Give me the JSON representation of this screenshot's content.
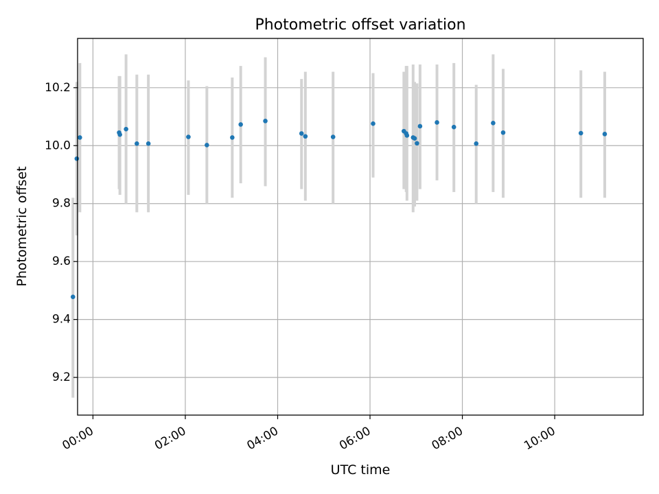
{
  "chart_data": {
    "type": "scatter",
    "title": "Photometric offset variation",
    "xlabel": "UTC time",
    "ylabel": "Photometric offset",
    "x_unit": "hours UTC",
    "xlim": [
      "-00:20",
      "11:55"
    ],
    "ylim": [
      9.07,
      10.37
    ],
    "x_ticks": [
      "00:00",
      "02:00",
      "04:00",
      "06:00",
      "08:00",
      "10:00"
    ],
    "y_ticks": [
      "9.2",
      "9.4",
      "9.6",
      "9.8",
      "10.0",
      "10.2"
    ],
    "grid": true,
    "colors": {
      "point": "#1f77b4",
      "errorbar": "#d3d3d3"
    },
    "series": [
      {
        "points": [
          {
            "t": "23:34",
            "y": 9.478,
            "lo": 9.13,
            "hi": 9.82
          },
          {
            "t": "23:39",
            "y": 9.955,
            "lo": 9.69,
            "hi": 10.22
          },
          {
            "t": "23:43",
            "y": 10.028,
            "lo": 9.77,
            "hi": 10.285
          },
          {
            "t": "00:34",
            "y": 10.045,
            "lo": 9.85,
            "hi": 10.24
          },
          {
            "t": "00:35",
            "y": 10.038,
            "lo": 9.83,
            "hi": 10.24
          },
          {
            "t": "00:43",
            "y": 10.057,
            "lo": 9.8,
            "hi": 10.315
          },
          {
            "t": "00:57",
            "y": 10.007,
            "lo": 9.77,
            "hi": 10.245
          },
          {
            "t": "01:12",
            "y": 10.007,
            "lo": 9.77,
            "hi": 10.245
          },
          {
            "t": "02:04",
            "y": 10.03,
            "lo": 9.83,
            "hi": 10.225
          },
          {
            "t": "02:28",
            "y": 10.002,
            "lo": 9.8,
            "hi": 10.205
          },
          {
            "t": "03:01",
            "y": 10.028,
            "lo": 9.82,
            "hi": 10.235
          },
          {
            "t": "03:12",
            "y": 10.073,
            "lo": 9.87,
            "hi": 10.275
          },
          {
            "t": "03:44",
            "y": 10.085,
            "lo": 9.86,
            "hi": 10.305
          },
          {
            "t": "04:31",
            "y": 10.042,
            "lo": 9.85,
            "hi": 10.23
          },
          {
            "t": "04:36",
            "y": 10.032,
            "lo": 9.81,
            "hi": 10.255
          },
          {
            "t": "05:12",
            "y": 10.03,
            "lo": 9.8,
            "hi": 10.255
          },
          {
            "t": "06:04",
            "y": 10.076,
            "lo": 9.89,
            "hi": 10.25
          },
          {
            "t": "06:44",
            "y": 10.05,
            "lo": 9.85,
            "hi": 10.255
          },
          {
            "t": "06:47",
            "y": 10.042,
            "lo": 9.84,
            "hi": 10.275
          },
          {
            "t": "06:48",
            "y": 10.035,
            "lo": 9.81,
            "hi": 10.275
          },
          {
            "t": "06:56",
            "y": 10.028,
            "lo": 9.77,
            "hi": 10.28
          },
          {
            "t": "06:58",
            "y": 10.025,
            "lo": 9.79,
            "hi": 10.22
          },
          {
            "t": "07:01",
            "y": 10.008,
            "lo": 9.81,
            "hi": 10.215
          },
          {
            "t": "07:05",
            "y": 10.067,
            "lo": 9.85,
            "hi": 10.28
          },
          {
            "t": "07:27",
            "y": 10.08,
            "lo": 9.88,
            "hi": 10.28
          },
          {
            "t": "07:49",
            "y": 10.064,
            "lo": 9.84,
            "hi": 10.285
          },
          {
            "t": "08:18",
            "y": 10.007,
            "lo": 9.8,
            "hi": 10.21
          },
          {
            "t": "08:40",
            "y": 10.078,
            "lo": 9.84,
            "hi": 10.315
          },
          {
            "t": "08:53",
            "y": 10.045,
            "lo": 9.82,
            "hi": 10.265
          },
          {
            "t": "10:34",
            "y": 10.043,
            "lo": 9.82,
            "hi": 10.26
          },
          {
            "t": "11:05",
            "y": 10.04,
            "lo": 9.82,
            "hi": 10.255
          }
        ]
      }
    ]
  }
}
